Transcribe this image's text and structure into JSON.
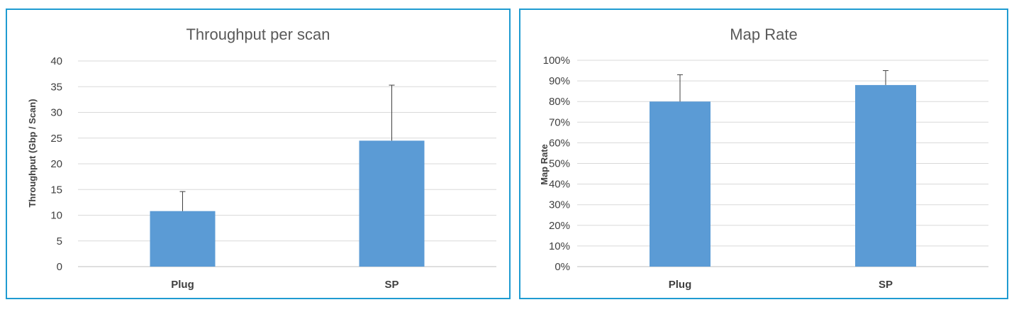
{
  "chart_data": [
    {
      "type": "bar",
      "title": "Throughput per scan",
      "xlabel": "",
      "ylabel": "Throughput (Gbp / Scan)",
      "categories": [
        "Plug",
        "SP"
      ],
      "values": [
        10.8,
        24.5
      ],
      "error_upper": [
        14.6,
        35.3
      ],
      "ylim": [
        0,
        40
      ],
      "ytick_step": 5,
      "ytick_labels": [
        "0",
        "5",
        "10",
        "15",
        "20",
        "25",
        "30",
        "35",
        "40"
      ],
      "grid": true,
      "bar_color": "#5b9bd5"
    },
    {
      "type": "bar",
      "title": "Map Rate",
      "xlabel": "",
      "ylabel": "Map Rate",
      "categories": [
        "Plug",
        "SP"
      ],
      "values": [
        0.8,
        0.88
      ],
      "error_upper": [
        0.93,
        0.95
      ],
      "ylim": [
        0,
        1.0
      ],
      "ytick_step": 0.1,
      "ytick_labels": [
        "0%",
        "10%",
        "20%",
        "30%",
        "40%",
        "50%",
        "60%",
        "70%",
        "80%",
        "90%",
        "100%"
      ],
      "grid": true,
      "bar_color": "#5b9bd5"
    }
  ],
  "colors": {
    "border": "#1f9bd1",
    "grid": "#d9d9d9",
    "error_bar": "#404040"
  }
}
